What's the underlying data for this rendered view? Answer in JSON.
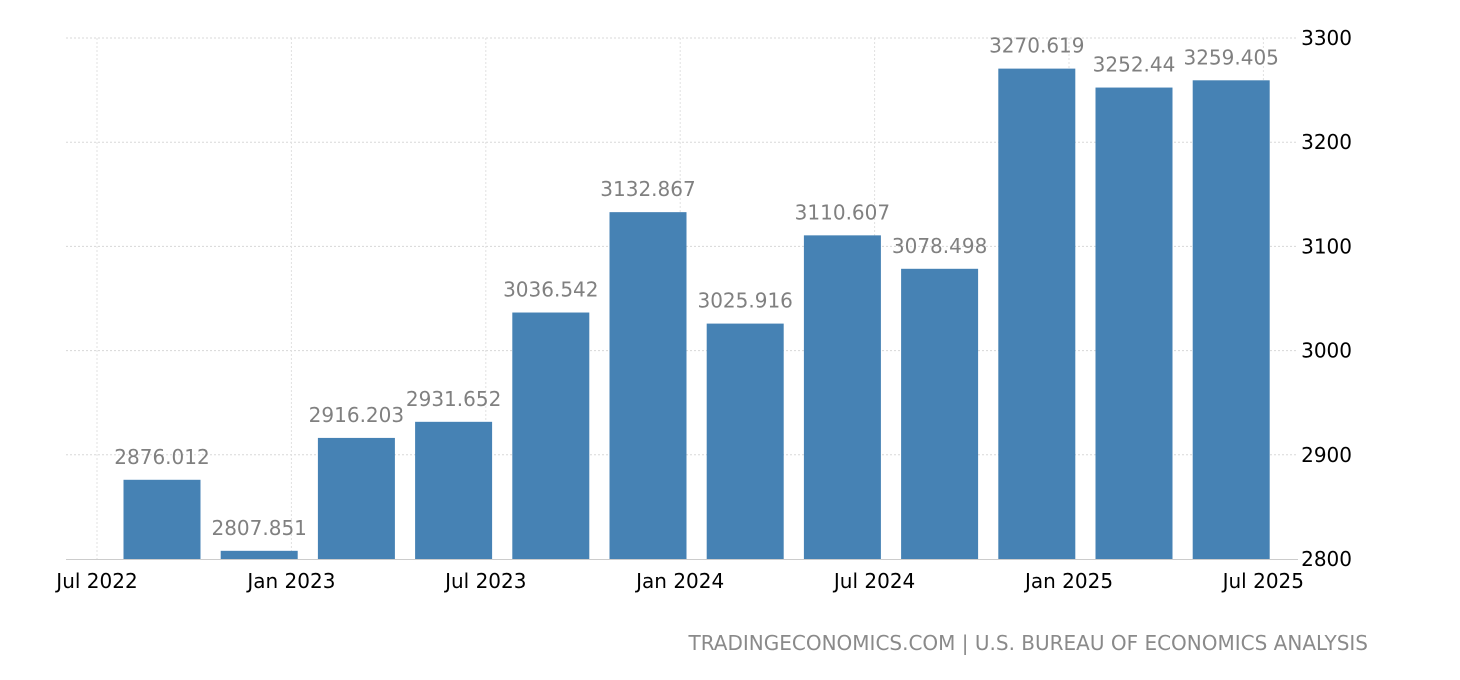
{
  "chart_data": {
    "type": "bar",
    "categories": [
      "Q3 2022",
      "Q4 2022",
      "Q1 2023",
      "Q2 2023",
      "Q3 2023",
      "Q4 2023",
      "Q1 2024",
      "Q2 2024",
      "Q3 2024",
      "Q4 2024",
      "Q1 2025",
      "Q2 2025"
    ],
    "values": [
      2876.012,
      2807.851,
      2916.203,
      2931.652,
      3036.542,
      3132.867,
      3025.916,
      3110.607,
      3078.498,
      3270.619,
      3252.44,
      3259.405
    ],
    "data_labels": [
      "2876.012",
      "2807.851",
      "2916.203",
      "2931.652",
      "3036.542",
      "3132.867",
      "3025.916",
      "3110.607",
      "3078.498",
      "3270.619",
      "3252.44",
      "3259.405"
    ],
    "x_ticks": [
      "Jul 2022",
      "Jan 2023",
      "Jul 2023",
      "Jan 2024",
      "Jul 2024",
      "Jan 2025",
      "Jul 2025"
    ],
    "y_ticks": [
      "2800",
      "2900",
      "3000",
      "3100",
      "3200",
      "3300"
    ],
    "ylim": [
      2800,
      3300
    ],
    "y_axis_side": "right",
    "grid": true,
    "legend": "none",
    "bar_color": "#4682b4",
    "title": "",
    "xlabel": "",
    "ylabel": ""
  },
  "source": "TRADINGECONOMICS.COM | U.S. BUREAU OF ECONOMICS ANALYSIS"
}
